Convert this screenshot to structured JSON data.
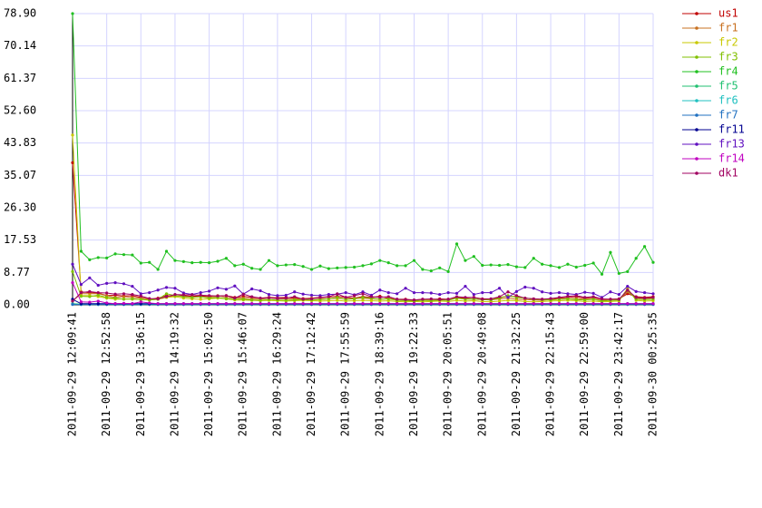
{
  "chart_data": {
    "type": "line",
    "ylim": [
      0,
      78.9
    ],
    "yticks": [
      {
        "value": 0,
        "label": "0.00"
      },
      8.77,
      17.53,
      {
        "value": 26.3,
        "label": "26.30"
      },
      35.07,
      43.83,
      {
        "value": 52.6,
        "label": "52.60"
      },
      61.37,
      70.14,
      {
        "value": 78.9,
        "label": "78.90"
      }
    ],
    "grid": true,
    "legend": "right",
    "categories": [
      "2011-09-29 12:09:41",
      null,
      null,
      null,
      "2011-09-29 12:52:58",
      null,
      null,
      null,
      "2011-09-29 13:36:15",
      null,
      null,
      null,
      "2011-09-29 14:19:32",
      null,
      null,
      null,
      "2011-09-29 15:02:50",
      null,
      null,
      null,
      "2011-09-29 15:46:07",
      null,
      null,
      null,
      "2011-09-29 16:29:24",
      null,
      null,
      null,
      "2011-09-29 17:12:42",
      null,
      null,
      null,
      "2011-09-29 17:55:59",
      null,
      null,
      null,
      "2011-09-29 18:39:16",
      null,
      null,
      null,
      "2011-09-29 19:22:33",
      null,
      null,
      null,
      "2011-09-29 20:05:51",
      null,
      null,
      null,
      "2011-09-29 20:49:08",
      null,
      null,
      null,
      "2011-09-29 21:32:25",
      null,
      null,
      null,
      "2011-09-29 22:15:43",
      null,
      null,
      null,
      "2011-09-29 22:59:00",
      null,
      null,
      null,
      "2011-09-29 23:42:17",
      null,
      null,
      null,
      "2011-09-30 00:25:35"
    ],
    "series": [
      {
        "name": "us1",
        "color": "#c00000",
        "values": [
          38.5,
          3.5,
          3.3,
          3.2,
          2.5,
          2.6,
          2.4,
          2.5,
          2.0,
          1.5,
          1.8,
          2.5,
          2.4,
          2.5,
          2.3,
          2.4,
          2.2,
          2.3,
          2.5,
          2.0,
          2.3,
          2.0,
          1.8,
          2.0,
          1.9,
          2.0,
          1.8,
          1.7,
          1.8,
          2.0,
          2.1,
          2.3,
          2.0,
          1.8,
          2.2,
          2.0,
          2.3,
          1.8,
          1.5,
          1.5,
          1.3,
          1.5,
          1.4,
          1.6,
          1.5,
          2.0,
          1.8,
          2.0,
          1.6,
          1.6,
          2.0,
          2.3,
          2.2,
          1.8,
          1.6,
          1.5,
          1.6,
          1.8,
          2.0,
          2.2,
          1.8,
          2.0,
          1.5,
          1.5,
          1.6,
          3.0,
          2.2,
          2.0,
          2.2
        ]
      },
      {
        "name": "fr1",
        "color": "#c87020",
        "values": [
          1.0,
          3.0,
          3.0,
          3.0,
          2.5,
          2.0,
          2.2,
          2.0,
          1.8,
          1.5,
          1.5,
          2.0,
          2.5,
          2.2,
          2.0,
          2.2,
          2.0,
          2.5,
          2.0,
          1.8,
          1.8,
          1.6,
          1.5,
          1.8,
          1.7,
          1.6,
          1.5,
          1.6,
          1.8,
          1.7,
          1.6,
          1.8,
          1.5,
          1.7,
          1.8,
          1.6,
          1.5,
          1.7,
          1.4,
          1.3,
          1.2,
          1.3,
          1.4,
          1.3,
          1.5,
          1.8,
          1.6,
          1.5,
          1.4,
          1.3,
          1.6,
          1.8,
          1.5,
          1.4,
          1.3,
          1.2,
          1.4,
          1.5,
          1.6,
          1.7,
          1.5,
          1.6,
          1.2,
          1.3,
          1.4,
          3.5,
          1.8,
          1.6,
          1.8
        ]
      },
      {
        "name": "fr2",
        "color": "#c8c800",
        "values": [
          46.0,
          2.5,
          2.5,
          2.2,
          1.8,
          1.5,
          1.6,
          1.5,
          1.4,
          1.3,
          1.5,
          2.0,
          2.2,
          1.8,
          1.6,
          1.5,
          1.6,
          1.8,
          1.6,
          1.3,
          1.3,
          1.2,
          1.1,
          1.2,
          1.1,
          1.0,
          1.1,
          1.2,
          1.1,
          1.0,
          1.1,
          1.2,
          1.0,
          1.1,
          1.2,
          1.1,
          1.0,
          1.1,
          0.9,
          0.8,
          0.9,
          0.8,
          0.9,
          1.0,
          0.9,
          1.2,
          1.0,
          1.1,
          0.9,
          0.8,
          1.0,
          1.2,
          1.1,
          0.9,
          0.8,
          0.9,
          1.0,
          1.1,
          1.2,
          1.1,
          0.9,
          1.0,
          0.8,
          0.9,
          1.0,
          4.5,
          1.2,
          1.0,
          1.1
        ]
      },
      {
        "name": "fr3",
        "color": "#80c000",
        "values": [
          9.0,
          2.3,
          2.2,
          2.6,
          2.0,
          1.8,
          1.5,
          1.6,
          1.4,
          1.3,
          1.5,
          3.0,
          2.5,
          2.2,
          2.0,
          2.2,
          1.8,
          2.0,
          1.6,
          1.5,
          1.5,
          1.3,
          1.2,
          1.4,
          1.3,
          1.2,
          1.3,
          1.4,
          1.3,
          1.4,
          1.6,
          2.0,
          1.5,
          1.6,
          2.0,
          1.8,
          1.5,
          1.6,
          1.2,
          1.1,
          1.0,
          1.2,
          1.1,
          1.3,
          1.2,
          1.8,
          1.5,
          1.6,
          1.4,
          1.3,
          1.8,
          2.5,
          2.0,
          1.8,
          1.5,
          1.4,
          1.3,
          1.5,
          1.6,
          1.4,
          1.3,
          1.5,
          1.0,
          1.2,
          1.3,
          4.0,
          1.5,
          1.4,
          1.5
        ]
      },
      {
        "name": "fr4",
        "color": "#20c020",
        "values": [
          78.9,
          14.5,
          12.2,
          12.8,
          12.7,
          13.8,
          13.6,
          13.5,
          11.3,
          11.5,
          9.6,
          14.5,
          12.0,
          11.7,
          11.4,
          11.5,
          11.4,
          11.8,
          12.6,
          10.6,
          11.0,
          9.9,
          9.6,
          12.0,
          10.6,
          10.8,
          10.9,
          10.4,
          9.6,
          10.5,
          9.8,
          10.0,
          10.1,
          10.2,
          10.6,
          11.1,
          12.0,
          11.4,
          10.6,
          10.6,
          12.0,
          9.6,
          9.2,
          10.0,
          9.0,
          16.5,
          12.0,
          13.1,
          10.7,
          10.8,
          10.7,
          10.9,
          10.3,
          10.1,
          12.6,
          11.0,
          10.6,
          10.1,
          11.0,
          10.2,
          10.7,
          11.3,
          8.3,
          14.2,
          8.5,
          9.0,
          12.6,
          15.8,
          11.5
        ]
      },
      {
        "name": "fr5",
        "color": "#20c070",
        "values": [
          0.3,
          0.2,
          0.2,
          0.2,
          0.2,
          0.2,
          0.2,
          0.2,
          0.2,
          0.2,
          0.2,
          0.2,
          0.2,
          0.2,
          0.2,
          0.2,
          0.2,
          0.2,
          0.2,
          0.2,
          0.2,
          0.2,
          0.2,
          0.2,
          0.2,
          0.2,
          0.2,
          0.2,
          0.2,
          0.2,
          0.2,
          0.2,
          0.2,
          0.2,
          0.2,
          0.2,
          0.2,
          0.2,
          0.2,
          0.2,
          0.2,
          0.2,
          0.2,
          0.2,
          0.2,
          0.2,
          0.2,
          0.2,
          0.2,
          0.2,
          0.2,
          0.2,
          0.2,
          0.2,
          0.2,
          0.2,
          0.2,
          0.2,
          0.2,
          0.2,
          0.2,
          0.2,
          0.2,
          0.2,
          0.2,
          0.2,
          0.2,
          0.2,
          0.2
        ]
      },
      {
        "name": "fr6",
        "color": "#20c0c0",
        "values": [
          0.2,
          0.1,
          0.1,
          0.1,
          0.1,
          0.1,
          0.1,
          0.1,
          0.1,
          0.1,
          0.1,
          0.1,
          0.1,
          0.1,
          0.1,
          0.1,
          0.1,
          0.1,
          0.1,
          0.1,
          0.1,
          0.1,
          0.1,
          0.1,
          0.1,
          0.1,
          0.1,
          0.1,
          0.1,
          0.1,
          0.1,
          0.1,
          0.1,
          0.1,
          0.1,
          0.1,
          0.1,
          0.1,
          0.1,
          0.1,
          0.1,
          0.1,
          0.1,
          0.1,
          0.1,
          0.1,
          0.1,
          0.1,
          0.1,
          0.1,
          0.1,
          0.1,
          0.1,
          0.1,
          0.1,
          0.1,
          0.1,
          0.1,
          0.1,
          0.1,
          0.1,
          0.1,
          0.1,
          0.1,
          0.1,
          0.1,
          0.1,
          0.1,
          0.1
        ]
      },
      {
        "name": "fr7",
        "color": "#2070c0",
        "values": [
          0.1,
          0.1,
          0.1,
          0.1,
          0.1,
          0.1,
          0.1,
          0.1,
          0.1,
          0.1,
          0.1,
          0.1,
          0.1,
          0.1,
          0.1,
          0.1,
          0.1,
          0.1,
          0.1,
          0.1,
          0.1,
          0.1,
          0.1,
          0.1,
          0.1,
          0.1,
          0.1,
          0.1,
          0.1,
          0.1,
          0.1,
          0.1,
          0.1,
          0.1,
          0.1,
          0.1,
          0.1,
          0.1,
          0.1,
          0.1,
          0.1,
          0.1,
          0.1,
          0.1,
          0.1,
          0.1,
          0.1,
          0.1,
          0.1,
          0.1,
          0.1,
          0.1,
          0.1,
          0.1,
          0.1,
          0.1,
          0.1,
          0.1,
          0.1,
          0.1,
          0.1,
          0.1,
          0.1,
          0.1,
          0.1,
          0.1,
          0.1,
          0.1,
          0.1
        ]
      },
      {
        "name": "fr11",
        "color": "#000090",
        "values": [
          1.5,
          0.3,
          0.3,
          0.3,
          0.3,
          0.3,
          0.3,
          0.3,
          0.3,
          0.3,
          0.3,
          0.3,
          0.3,
          0.3,
          0.3,
          0.3,
          0.3,
          0.3,
          0.3,
          0.3,
          0.3,
          0.3,
          0.3,
          0.3,
          0.3,
          0.3,
          0.3,
          0.3,
          0.3,
          0.3,
          0.3,
          0.3,
          0.3,
          0.3,
          0.3,
          0.3,
          0.3,
          0.3,
          0.3,
          0.3,
          0.3,
          0.3,
          0.3,
          0.3,
          0.3,
          0.3,
          0.3,
          0.3,
          0.3,
          0.3,
          0.3,
          0.3,
          0.3,
          0.3,
          0.3,
          0.3,
          0.3,
          0.3,
          0.3,
          0.3,
          0.3,
          0.3,
          0.3,
          0.3,
          0.3,
          0.3,
          0.3,
          0.3,
          0.3
        ]
      },
      {
        "name": "fr13",
        "color": "#6010c0",
        "values": [
          11.0,
          5.5,
          7.3,
          5.3,
          5.8,
          6.0,
          5.7,
          5.0,
          3.0,
          3.3,
          4.0,
          4.7,
          4.5,
          3.2,
          2.8,
          3.3,
          3.7,
          4.6,
          4.2,
          5.1,
          2.9,
          4.3,
          3.8,
          2.8,
          2.5,
          2.6,
          3.5,
          2.9,
          2.6,
          2.5,
          2.8,
          2.9,
          3.3,
          2.7,
          3.5,
          2.6,
          4.0,
          3.3,
          3.0,
          4.5,
          3.3,
          3.3,
          3.2,
          2.8,
          3.3,
          3.1,
          5.0,
          2.8,
          3.3,
          3.3,
          4.5,
          2.0,
          3.6,
          4.8,
          4.5,
          3.5,
          3.1,
          3.3,
          3.0,
          2.8,
          3.4,
          3.1,
          2.0,
          3.5,
          2.8,
          5.0,
          3.6,
          3.3,
          3.0
        ]
      },
      {
        "name": "fr14",
        "color": "#c000c0",
        "values": [
          6.0,
          0.8,
          0.7,
          1.0,
          0.5,
          0.3,
          0.4,
          0.3,
          0.8,
          0.5,
          0.3,
          0.3,
          0.3,
          0.3,
          0.3,
          0.3,
          0.3,
          0.3,
          0.3,
          0.3,
          0.3,
          0.3,
          0.3,
          0.3,
          0.3,
          0.3,
          0.3,
          0.3,
          0.3,
          0.3,
          0.3,
          0.3,
          0.3,
          0.3,
          0.3,
          0.3,
          0.3,
          0.3,
          0.3,
          0.3,
          0.3,
          0.3,
          0.3,
          0.3,
          0.3,
          0.3,
          0.3,
          0.3,
          0.3,
          0.3,
          0.3,
          0.3,
          0.3,
          0.3,
          0.3,
          0.3,
          0.3,
          0.3,
          0.3,
          0.3,
          0.3,
          0.3,
          0.3,
          0.3,
          0.3,
          0.3,
          0.3,
          0.3,
          0.3
        ]
      },
      {
        "name": "dk1",
        "color": "#a00060",
        "values": [
          1.0,
          3.3,
          3.6,
          3.3,
          3.2,
          2.9,
          3.0,
          2.8,
          2.4,
          1.7,
          1.6,
          2.2,
          2.8,
          2.7,
          2.7,
          2.6,
          2.5,
          2.4,
          2.5,
          1.8,
          2.9,
          2.2,
          1.8,
          1.9,
          1.7,
          1.8,
          2.2,
          1.5,
          1.6,
          2.0,
          2.2,
          3.0,
          2.0,
          2.5,
          3.0,
          2.2,
          2.0,
          2.2,
          1.5,
          1.4,
          1.3,
          1.5,
          1.6,
          1.4,
          1.5,
          2.2,
          2.0,
          2.0,
          1.5,
          1.6,
          2.2,
          3.5,
          2.5,
          1.8,
          1.6,
          1.5,
          1.7,
          2.0,
          2.3,
          2.5,
          2.0,
          2.2,
          1.6,
          1.5,
          1.5,
          4.0,
          2.0,
          1.8,
          2.0
        ]
      }
    ]
  }
}
